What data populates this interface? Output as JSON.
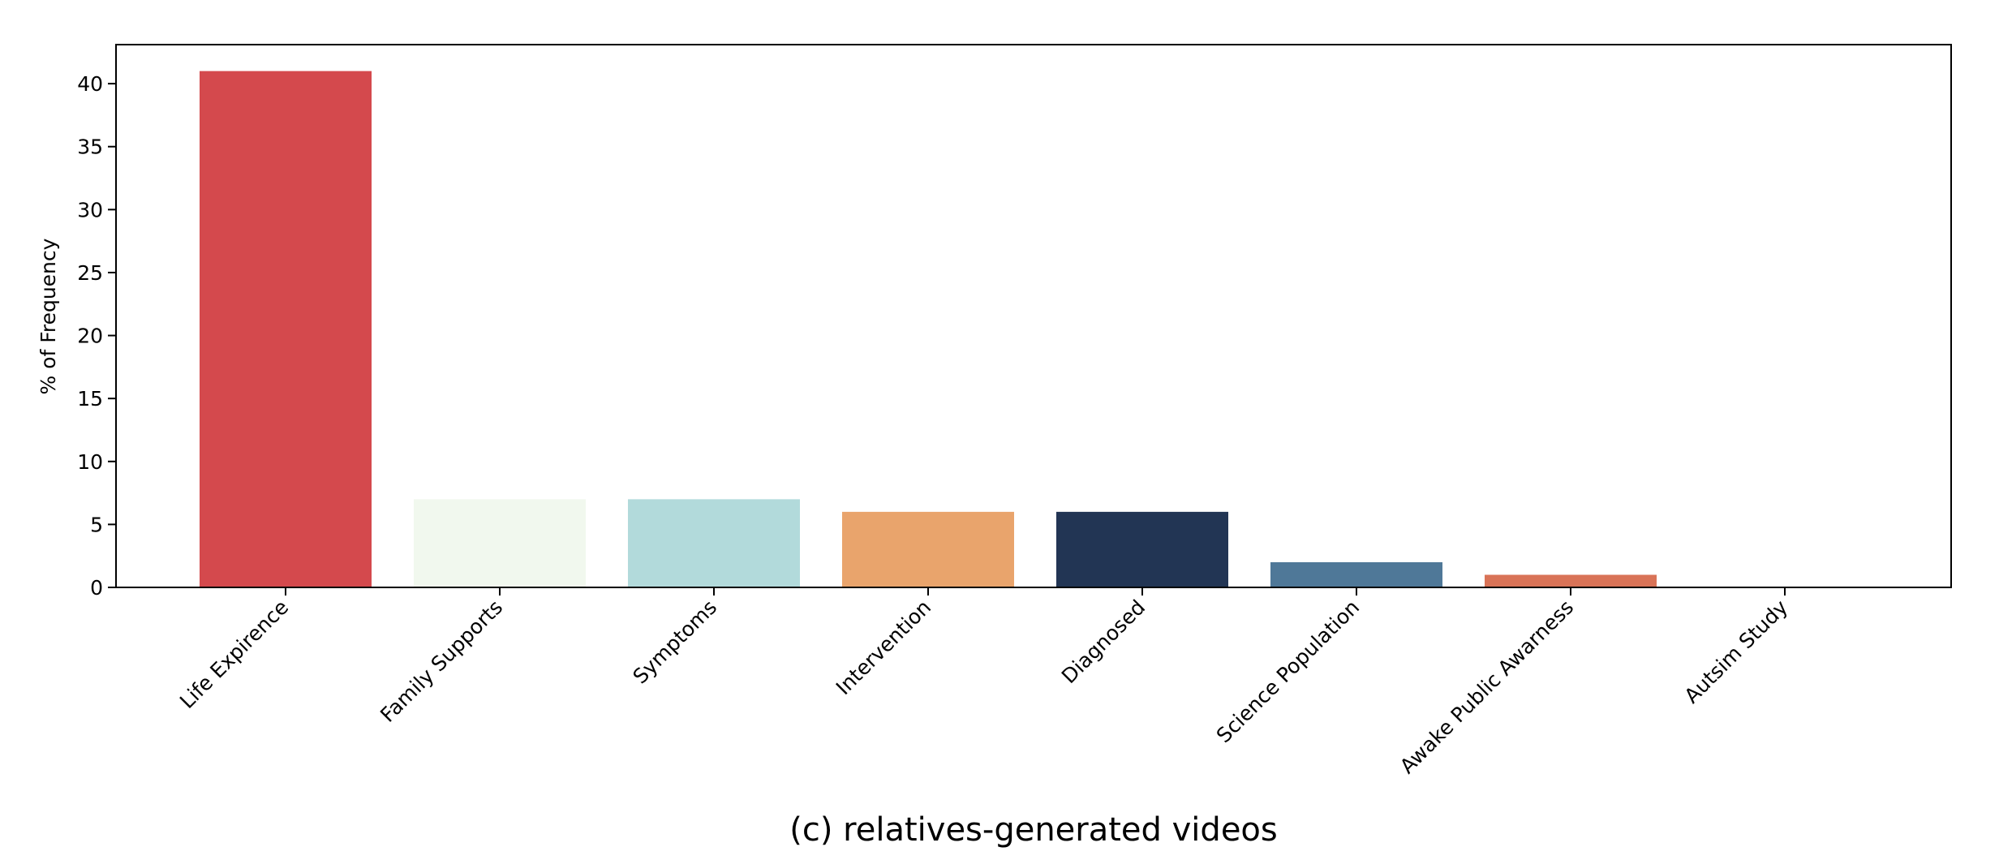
{
  "chart_data": {
    "type": "bar",
    "caption": "(c) relatives-generated videos",
    "title": "",
    "xlabel": "",
    "ylabel": "% of Frequency",
    "categories": [
      "Life Expirence",
      "Family Supports",
      "Symptoms",
      "Intervention",
      "Diagnosed",
      "Science Population",
      "Awake Public Awarness",
      "Autsim Study"
    ],
    "values": [
      41,
      7,
      7,
      6,
      6,
      2,
      1,
      0
    ],
    "colors": [
      "#d4494d",
      "#f1f8ee",
      "#b2dadb",
      "#e9a46c",
      "#223554",
      "#4f7898",
      "#d97357",
      "#d97357"
    ],
    "ylim": [
      0,
      43.1
    ],
    "yticks": [
      0,
      5,
      10,
      15,
      20,
      25,
      30,
      35,
      40
    ],
    "grid": false,
    "legend": "none"
  }
}
